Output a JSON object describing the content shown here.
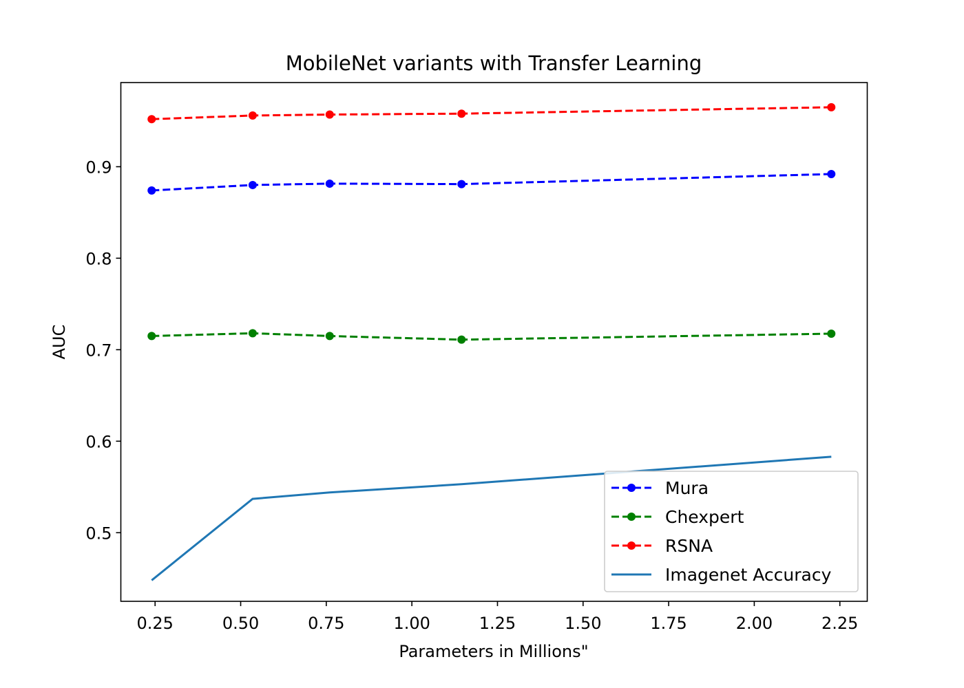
{
  "chart_data": {
    "type": "line",
    "title": "MobileNet variants with Transfer Learning",
    "xlabel": "Parameters in Millions\"",
    "ylabel": "AUC",
    "xlim": [
      0.15,
      2.33
    ],
    "ylim": [
      0.425,
      0.992
    ],
    "xticks": [
      0.25,
      0.5,
      0.75,
      1.0,
      1.25,
      1.5,
      1.75,
      2.0,
      2.25
    ],
    "xtick_labels": [
      "0.25",
      "0.50",
      "0.75",
      "1.00",
      "1.25",
      "1.50",
      "1.75",
      "2.00",
      "2.25"
    ],
    "yticks": [
      0.5,
      0.6,
      0.7,
      0.8,
      0.9
    ],
    "ytick_labels": [
      "0.5",
      "0.6",
      "0.7",
      "0.8",
      "0.9"
    ],
    "grid": false,
    "legend_position": "bottom-right",
    "x": [
      0.24,
      0.535,
      0.76,
      1.145,
      2.225
    ],
    "series": [
      {
        "name": "Mura",
        "values": [
          0.874,
          0.88,
          0.8815,
          0.881,
          0.892
        ],
        "color": "#0000ff",
        "style": "dashed-markers"
      },
      {
        "name": "Chexpert",
        "values": [
          0.715,
          0.718,
          0.715,
          0.711,
          0.7175
        ],
        "color": "#008000",
        "style": "dashed-markers"
      },
      {
        "name": "RSNA",
        "values": [
          0.952,
          0.956,
          0.957,
          0.958,
          0.965
        ],
        "color": "#ff0000",
        "style": "dashed-markers"
      },
      {
        "name": "Imagenet Accuracy",
        "values": [
          0.448,
          0.537,
          0.544,
          0.553,
          0.583
        ],
        "color": "#1f77b4",
        "style": "solid"
      }
    ]
  }
}
